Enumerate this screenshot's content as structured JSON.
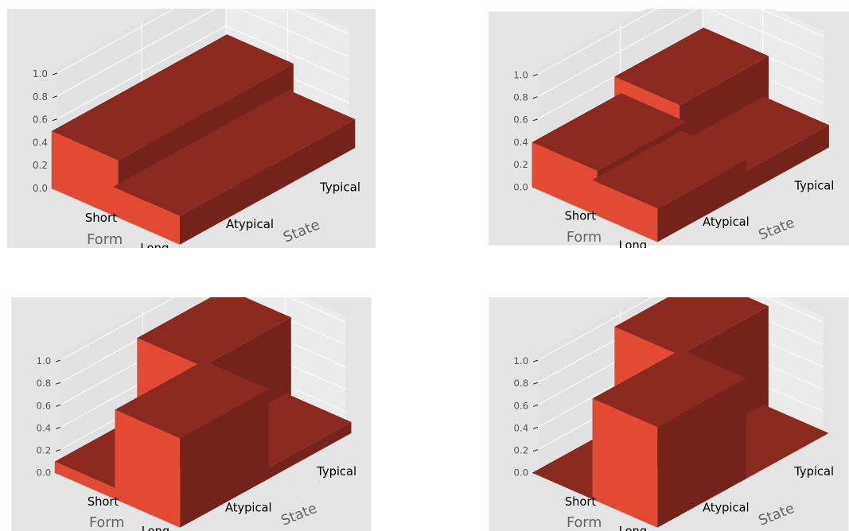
{
  "chart_data": [
    {
      "type": "bar",
      "subtype": "3d-bar",
      "title": "",
      "xlabel": "Form",
      "ylabel": "State",
      "x_categories": [
        "Short",
        "Long"
      ],
      "y_categories": [
        "Atypical",
        "Typical"
      ],
      "zlim": [
        0,
        1
      ],
      "z_ticks": [
        "0.0",
        "0.2",
        "0.4",
        "0.6",
        "0.8",
        "1.0"
      ],
      "grid": true,
      "bars": [
        {
          "form": "Short",
          "state": "Atypical",
          "value": 0.5
        },
        {
          "form": "Long",
          "state": "Atypical",
          "value": 0.25
        },
        {
          "form": "Short",
          "state": "Typical",
          "value": 0.5
        },
        {
          "form": "Long",
          "state": "Typical",
          "value": 0.25
        }
      ]
    },
    {
      "type": "bar",
      "subtype": "3d-bar",
      "title": "",
      "xlabel": "Form",
      "ylabel": "State",
      "x_categories": [
        "Short",
        "Long"
      ],
      "y_categories": [
        "Atypical",
        "Typical"
      ],
      "zlim": [
        0,
        1
      ],
      "z_ticks": [
        "0.0",
        "0.2",
        "0.4",
        "0.6",
        "0.8",
        "1.0"
      ],
      "grid": true,
      "bars": [
        {
          "form": "Short",
          "state": "Atypical",
          "value": 0.4
        },
        {
          "form": "Long",
          "state": "Atypical",
          "value": 0.3
        },
        {
          "form": "Short",
          "state": "Typical",
          "value": 0.58
        },
        {
          "form": "Long",
          "state": "Typical",
          "value": 0.2
        }
      ]
    },
    {
      "type": "bar",
      "subtype": "3d-bar",
      "title": "",
      "xlabel": "Form",
      "ylabel": "State",
      "x_categories": [
        "Short",
        "Long"
      ],
      "y_categories": [
        "Atypical",
        "Typical"
      ],
      "zlim": [
        0,
        1
      ],
      "z_ticks": [
        "0.0",
        "0.2",
        "0.4",
        "0.6",
        "0.8",
        "1.0"
      ],
      "grid": true,
      "bars": [
        {
          "form": "Short",
          "state": "Atypical",
          "value": 0.1
        },
        {
          "form": "Long",
          "state": "Atypical",
          "value": 0.8
        },
        {
          "form": "Short",
          "state": "Typical",
          "value": 0.8
        },
        {
          "form": "Long",
          "state": "Typical",
          "value": 0.1
        }
      ]
    },
    {
      "type": "bar",
      "subtype": "3d-bar",
      "title": "",
      "xlabel": "Form",
      "ylabel": "State",
      "x_categories": [
        "Short",
        "Long"
      ],
      "y_categories": [
        "Atypical",
        "Typical"
      ],
      "zlim": [
        0,
        1
      ],
      "z_ticks": [
        "0.0",
        "0.2",
        "0.4",
        "0.6",
        "0.8",
        "1.0"
      ],
      "grid": true,
      "bars": [
        {
          "form": "Short",
          "state": "Atypical",
          "value": 0.0
        },
        {
          "form": "Long",
          "state": "Atypical",
          "value": 0.9
        },
        {
          "form": "Short",
          "state": "Typical",
          "value": 0.9
        },
        {
          "form": "Long",
          "state": "Typical",
          "value": 0.0
        }
      ]
    }
  ],
  "colors": {
    "pane_background": "#e5e5e5",
    "wall_left": "#e2e2e2",
    "wall_back": "#ebebeb",
    "grid": "#ffffff",
    "bar_front": "#e24a33",
    "bar_side": "#73231a",
    "bar_top": "#8a2a1e"
  }
}
